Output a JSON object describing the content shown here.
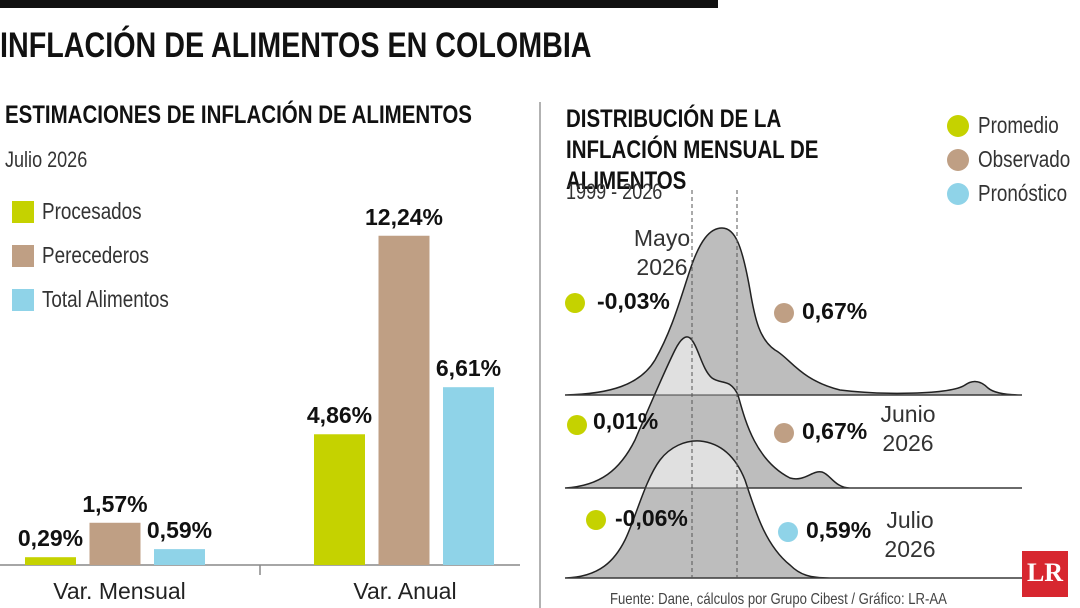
{
  "header": {
    "title": "INFLACIÓN DE ALIMENTOS EN COLOMBIA"
  },
  "chart_data": [
    {
      "type": "bar",
      "title": "ESTIMACIONES DE INFLACIÓN DE ALIMENTOS",
      "subtitle": "Julio 2026",
      "categories": [
        "Var. Mensual",
        "Var. Anual"
      ],
      "series": [
        {
          "name": "Procesados",
          "color": "#c5d200",
          "values": [
            0.29,
            4.86
          ],
          "value_labels": [
            "0,29%",
            "4,86%"
          ]
        },
        {
          "name": "Perecederos",
          "color": "#bf9f84",
          "values": [
            1.57,
            12.24
          ],
          "value_labels": [
            "1,57%",
            "12,24%"
          ]
        },
        {
          "name": "Total Alimentos",
          "color": "#8fd3e8",
          "values": [
            0.59,
            6.61
          ],
          "value_labels": [
            "0,59%",
            "6,61%"
          ]
        }
      ]
    },
    {
      "type": "ridgeline",
      "title": "DISTRIBUCIÓN DE LA INFLACIÓN MENSUAL DE ALIMENTOS",
      "subtitle": "1999 - 2026",
      "categories": [
        "Mayo 2026",
        "Junio 2026",
        "Julio 2026"
      ],
      "series": [
        {
          "name": "Promedio",
          "color": "#c5d200",
          "values": [
            -0.03,
            0.01,
            -0.06
          ],
          "value_labels": [
            "-0,03%",
            "0,01%",
            "-0,06%"
          ]
        },
        {
          "name": "Observado",
          "color": "#bf9f84",
          "values": [
            0.67,
            0.67,
            null
          ],
          "value_labels": [
            "0,67%",
            "0,67%",
            null
          ]
        },
        {
          "name": "Pronóstico",
          "color": "#8fd3e8",
          "values": [
            null,
            null,
            0.59
          ],
          "value_labels": [
            null,
            null,
            "0,59%"
          ]
        }
      ]
    }
  ],
  "source": "Fuente: Dane, cálculos por Grupo Cibest / Gráfico: LR-AA",
  "logo": "LR"
}
